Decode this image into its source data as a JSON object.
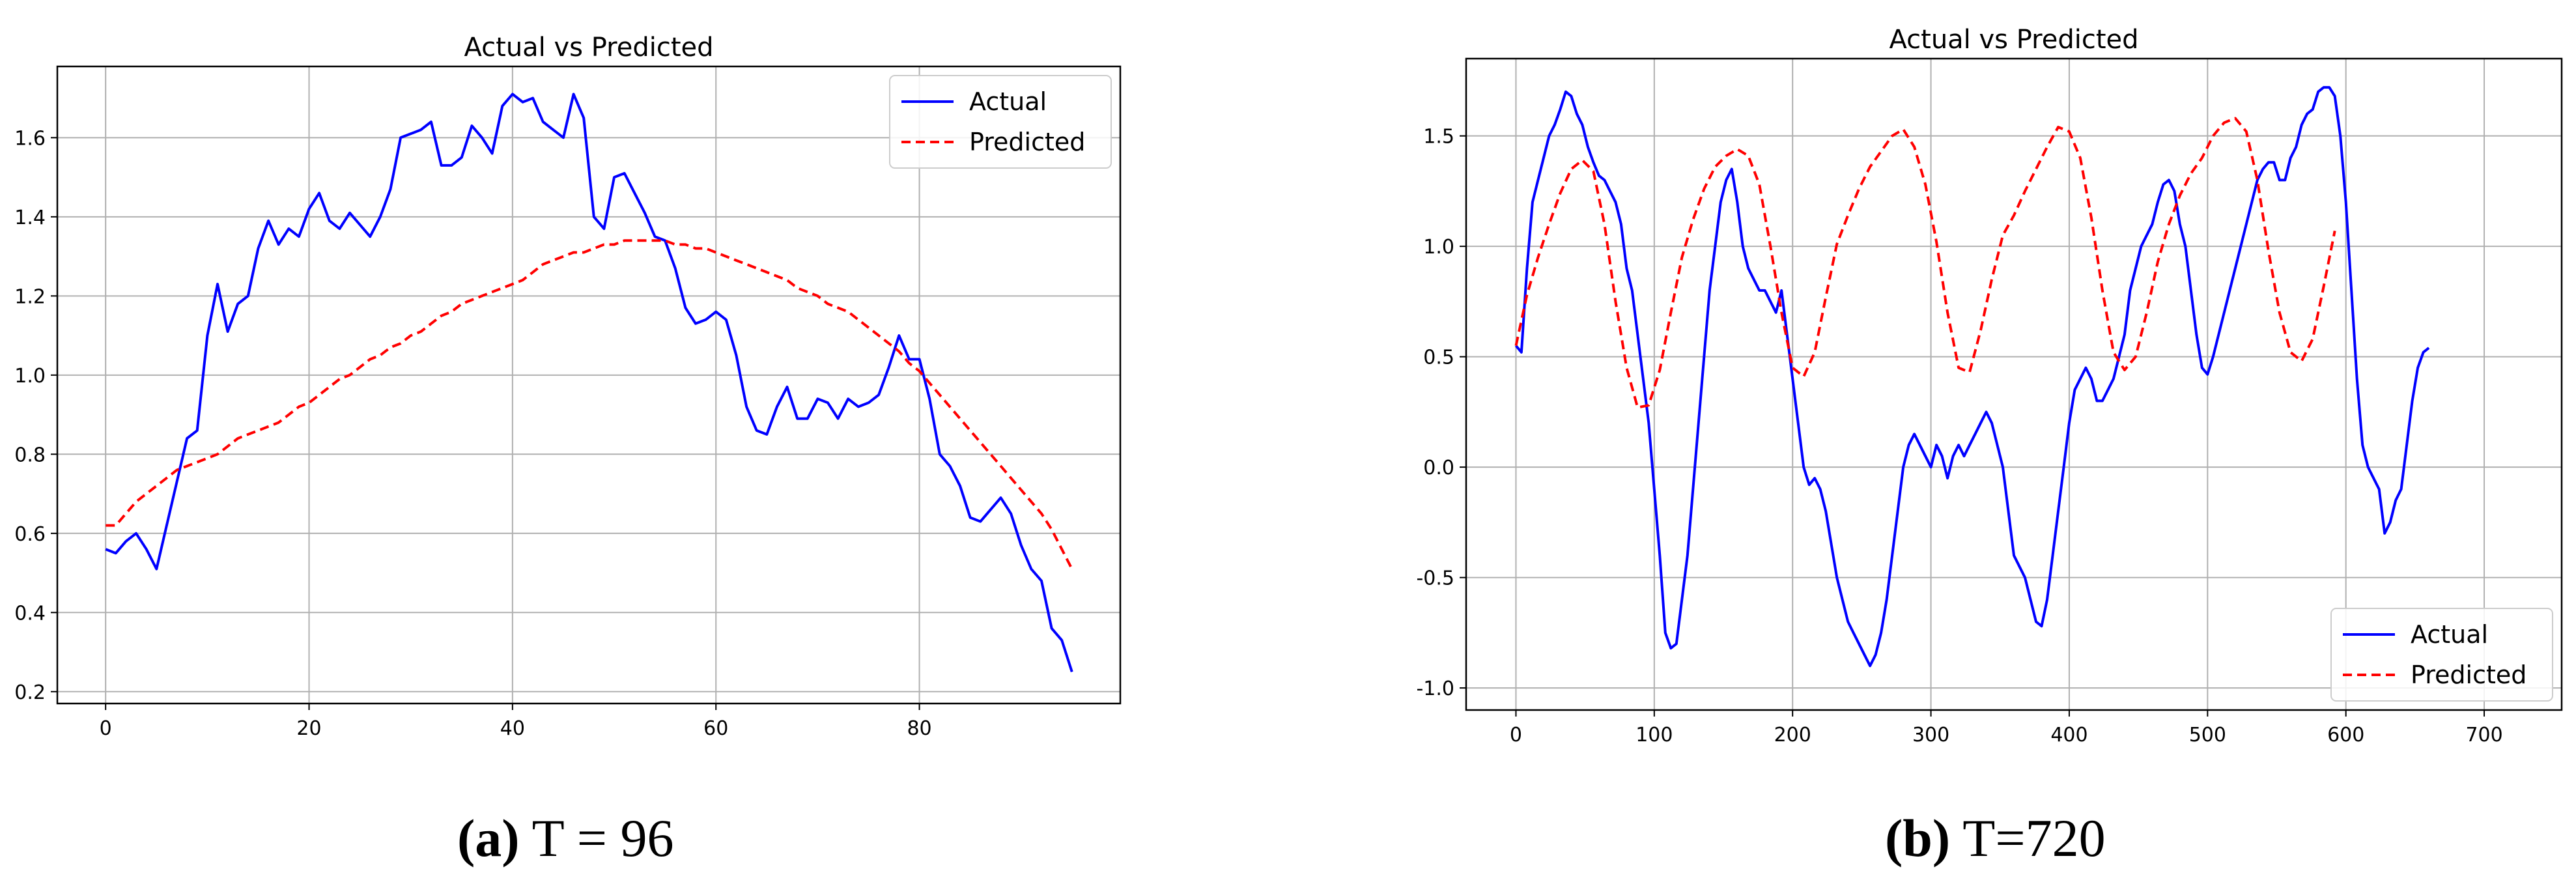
{
  "chart_data": [
    {
      "type": "line",
      "title": "Actual vs Predicted",
      "xlabel": "",
      "ylabel": "",
      "xlim": [
        -4.75,
        99.75
      ],
      "ylim": [
        0.17,
        1.78
      ],
      "xticks": [
        0,
        20,
        40,
        60,
        80
      ],
      "yticks": [
        0.2,
        0.4,
        0.6,
        0.8,
        1.0,
        1.2,
        1.4,
        1.6
      ],
      "ytick_labels": [
        "0.2",
        "0.4",
        "0.6",
        "0.8",
        "1.0",
        "1.2",
        "1.4",
        "1.6"
      ],
      "grid": true,
      "legend_position": "top-right",
      "series": [
        {
          "name": "Actual",
          "style": "solid",
          "color": "#0000ff",
          "x_start": 0,
          "x_step": 1,
          "values": [
            0.56,
            0.55,
            0.58,
            0.6,
            0.56,
            0.51,
            0.62,
            0.73,
            0.84,
            0.86,
            1.1,
            1.23,
            1.11,
            1.18,
            1.2,
            1.32,
            1.39,
            1.33,
            1.37,
            1.35,
            1.42,
            1.46,
            1.39,
            1.37,
            1.41,
            1.38,
            1.35,
            1.4,
            1.47,
            1.6,
            1.61,
            1.62,
            1.64,
            1.53,
            1.53,
            1.55,
            1.63,
            1.6,
            1.56,
            1.68,
            1.71,
            1.69,
            1.7,
            1.64,
            1.62,
            1.6,
            1.71,
            1.65,
            1.4,
            1.37,
            1.5,
            1.51,
            1.46,
            1.41,
            1.35,
            1.34,
            1.27,
            1.17,
            1.13,
            1.14,
            1.16,
            1.14,
            1.05,
            0.92,
            0.86,
            0.85,
            0.92,
            0.97,
            0.89,
            0.89,
            0.94,
            0.93,
            0.89,
            0.94,
            0.92,
            0.93,
            0.95,
            1.02,
            1.1,
            1.04,
            1.04,
            0.94,
            0.8,
            0.77,
            0.72,
            0.64,
            0.63,
            0.66,
            0.69,
            0.65,
            0.57,
            0.51,
            0.48,
            0.36,
            0.33,
            0.25
          ]
        },
        {
          "name": "Predicted",
          "style": "dashed",
          "color": "#ff0000",
          "x_start": 0,
          "x_step": 1,
          "values": [
            0.62,
            0.62,
            0.65,
            0.68,
            0.7,
            0.72,
            0.74,
            0.76,
            0.77,
            0.78,
            0.79,
            0.8,
            0.82,
            0.84,
            0.85,
            0.86,
            0.87,
            0.88,
            0.9,
            0.92,
            0.93,
            0.95,
            0.97,
            0.99,
            1.0,
            1.02,
            1.04,
            1.05,
            1.07,
            1.08,
            1.1,
            1.11,
            1.13,
            1.15,
            1.16,
            1.18,
            1.19,
            1.2,
            1.21,
            1.22,
            1.23,
            1.24,
            1.26,
            1.28,
            1.29,
            1.3,
            1.31,
            1.31,
            1.32,
            1.33,
            1.33,
            1.34,
            1.34,
            1.34,
            1.34,
            1.34,
            1.33,
            1.33,
            1.32,
            1.32,
            1.31,
            1.3,
            1.29,
            1.28,
            1.27,
            1.26,
            1.25,
            1.24,
            1.22,
            1.21,
            1.2,
            1.18,
            1.17,
            1.16,
            1.14,
            1.12,
            1.1,
            1.08,
            1.06,
            1.03,
            1.01,
            0.98,
            0.95,
            0.92,
            0.89,
            0.86,
            0.83,
            0.8,
            0.77,
            0.74,
            0.71,
            0.68,
            0.65,
            0.61,
            0.56,
            0.51
          ]
        }
      ]
    },
    {
      "type": "line",
      "title": "Actual vs Predicted",
      "xlabel": "",
      "ylabel": "",
      "xlim": [
        -36,
        756
      ],
      "ylim": [
        -1.1,
        1.85
      ],
      "xticks": [
        0,
        100,
        200,
        300,
        400,
        500,
        600,
        700
      ],
      "yticks": [
        -1.0,
        -0.5,
        0.0,
        0.5,
        1.0,
        1.5
      ],
      "ytick_labels": [
        "-1.0",
        "-0.5",
        "0.0",
        "0.5",
        "1.0",
        "1.5"
      ],
      "grid": true,
      "legend_position": "bottom-right",
      "series": [
        {
          "name": "Actual",
          "style": "solid",
          "color": "#0000ff",
          "x_start": 0,
          "x_step": 4,
          "values": [
            0.55,
            0.52,
            0.9,
            1.2,
            1.3,
            1.4,
            1.5,
            1.55,
            1.62,
            1.7,
            1.68,
            1.6,
            1.55,
            1.45,
            1.38,
            1.32,
            1.3,
            1.25,
            1.2,
            1.1,
            0.9,
            0.8,
            0.6,
            0.4,
            0.2,
            -0.1,
            -0.4,
            -0.75,
            -0.82,
            -0.8,
            -0.6,
            -0.4,
            -0.1,
            0.2,
            0.5,
            0.8,
            1.0,
            1.2,
            1.3,
            1.35,
            1.2,
            1.0,
            0.9,
            0.85,
            0.8,
            0.8,
            0.75,
            0.7,
            0.8,
            0.6,
            0.4,
            0.2,
            0.0,
            -0.08,
            -0.05,
            -0.1,
            -0.2,
            -0.35,
            -0.5,
            -0.6,
            -0.7,
            -0.75,
            -0.8,
            -0.85,
            -0.9,
            -0.85,
            -0.75,
            -0.6,
            -0.4,
            -0.2,
            0.0,
            0.1,
            0.15,
            0.1,
            0.05,
            0.0,
            0.1,
            0.05,
            -0.05,
            0.05,
            0.1,
            0.05,
            0.1,
            0.15,
            0.2,
            0.25,
            0.2,
            0.1,
            0.0,
            -0.2,
            -0.4,
            -0.45,
            -0.5,
            -0.6,
            -0.7,
            -0.72,
            -0.6,
            -0.4,
            -0.2,
            0.0,
            0.2,
            0.35,
            0.4,
            0.45,
            0.4,
            0.3,
            0.3,
            0.35,
            0.4,
            0.5,
            0.6,
            0.8,
            0.9,
            1.0,
            1.05,
            1.1,
            1.2,
            1.28,
            1.3,
            1.25,
            1.1,
            1.0,
            0.8,
            0.6,
            0.45,
            0.42,
            0.5,
            0.6,
            0.7,
            0.8,
            0.9,
            1.0,
            1.1,
            1.2,
            1.3,
            1.35,
            1.38,
            1.38,
            1.3,
            1.3,
            1.4,
            1.45,
            1.55,
            1.6,
            1.62,
            1.7,
            1.72,
            1.72,
            1.68,
            1.5,
            1.2,
            0.8,
            0.4,
            0.1,
            0.0,
            -0.05,
            -0.1,
            -0.3,
            -0.25,
            -0.15,
            -0.1,
            0.1,
            0.3,
            0.45,
            0.52,
            0.54
          ]
        },
        {
          "name": "Predicted",
          "style": "dashed",
          "color": "#ff0000",
          "x_start": 0,
          "x_step": 8,
          "values": [
            0.55,
            0.78,
            0.95,
            1.1,
            1.24,
            1.35,
            1.39,
            1.34,
            1.1,
            0.75,
            0.45,
            0.27,
            0.28,
            0.44,
            0.7,
            0.95,
            1.12,
            1.26,
            1.36,
            1.41,
            1.44,
            1.41,
            1.28,
            1.0,
            0.7,
            0.45,
            0.41,
            0.52,
            0.77,
            1.01,
            1.14,
            1.26,
            1.36,
            1.43,
            1.5,
            1.53,
            1.45,
            1.28,
            1.02,
            0.7,
            0.45,
            0.43,
            0.62,
            0.85,
            1.05,
            1.14,
            1.25,
            1.35,
            1.45,
            1.54,
            1.52,
            1.4,
            1.13,
            0.8,
            0.52,
            0.44,
            0.5,
            0.7,
            0.93,
            1.1,
            1.23,
            1.33,
            1.4,
            1.5,
            1.56,
            1.58,
            1.52,
            1.3,
            0.98,
            0.7,
            0.52,
            0.48,
            0.58,
            0.82,
            1.07
          ]
        }
      ]
    }
  ],
  "captions": [
    {
      "label": "(a)",
      "text": " T = 96"
    },
    {
      "label": "(b)",
      "text": " T=720"
    }
  ],
  "legend_labels": [
    "Actual",
    "Predicted"
  ]
}
